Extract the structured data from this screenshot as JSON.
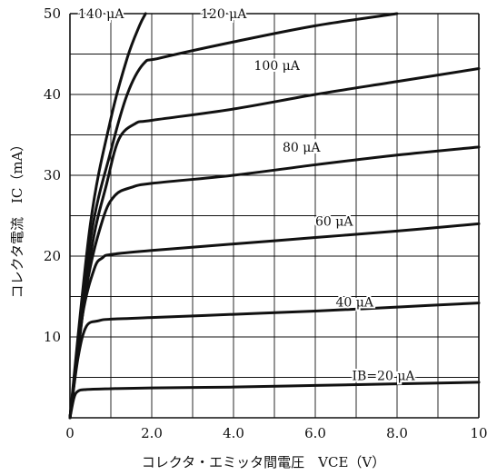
{
  "chart_data": {
    "type": "line",
    "xlabel": "コレクタ・エミッタ間電圧　VCE（V）",
    "ylabel": "コレクタ電流　IC（mA）",
    "xlim": [
      0,
      10
    ],
    "ylim": [
      0,
      50
    ],
    "x_ticks": [
      "0",
      "2.0",
      "4.0",
      "6.0",
      "8.0",
      "10"
    ],
    "y_ticks": [
      "10",
      "20",
      "30",
      "40",
      "50"
    ],
    "grid": true,
    "series": [
      {
        "name": "IB=20 μA",
        "x": [
          0,
          0.1,
          0.2,
          0.4,
          1,
          2,
          4,
          6,
          8,
          10
        ],
        "y": [
          0,
          2.5,
          3.3,
          3.5,
          3.6,
          3.7,
          3.8,
          4.0,
          4.2,
          4.4
        ]
      },
      {
        "name": "40 μA",
        "x": [
          0,
          0.2,
          0.4,
          0.7,
          1,
          2,
          4,
          6,
          8,
          10
        ],
        "y": [
          0,
          7.5,
          11.3,
          12.0,
          12.2,
          12.4,
          12.8,
          13.2,
          13.7,
          14.2
        ]
      },
      {
        "name": "60 μA",
        "x": [
          0,
          0.3,
          0.6,
          0.8,
          1,
          2,
          4,
          6,
          8,
          10
        ],
        "y": [
          0,
          12.5,
          18.5,
          19.8,
          20.2,
          20.7,
          21.5,
          22.3,
          23.1,
          24.0
        ]
      },
      {
        "name": "80 μA",
        "x": [
          0,
          0.4,
          0.8,
          1.1,
          1.5,
          2,
          4,
          6,
          8,
          10
        ],
        "y": [
          0,
          16.0,
          24.5,
          27.5,
          28.5,
          29.0,
          30.0,
          31.3,
          32.5,
          33.5
        ]
      },
      {
        "name": "100 μA",
        "x": [
          0,
          0.5,
          0.9,
          1.2,
          1.6,
          2,
          4,
          6,
          8,
          10
        ],
        "y": [
          0,
          20.0,
          29.0,
          34.5,
          36.4,
          36.8,
          38.2,
          40.0,
          41.6,
          43.2
        ]
      },
      {
        "name": "120 μA",
        "x": [
          0,
          0.5,
          1.0,
          1.4,
          1.8,
          2.2,
          4,
          6,
          8
        ],
        "y": [
          0,
          22.0,
          33.0,
          40.0,
          43.8,
          44.5,
          46.5,
          48.5,
          50.0
        ]
      },
      {
        "name": "140 μA",
        "x": [
          0,
          0.5,
          1.0,
          1.4,
          1.7,
          1.85
        ],
        "y": [
          0,
          24.0,
          37.0,
          44.5,
          48.5,
          50.0
        ]
      }
    ],
    "curve_labels": [
      {
        "text": "IB=20 μA",
        "x": 6.9,
        "y": 5.2
      },
      {
        "text": "40 μA",
        "x": 6.5,
        "y": 14.3
      },
      {
        "text": "60 μA",
        "x": 6.0,
        "y": 24.3
      },
      {
        "text": "80 μA",
        "x": 5.2,
        "y": 33.5
      },
      {
        "text": "100 μA",
        "x": 4.5,
        "y": 43.6
      },
      {
        "text": "120 μA",
        "x": 3.2,
        "y": 50.0
      },
      {
        "text": "140 μA",
        "x": 0.2,
        "y": 50.0
      }
    ]
  }
}
